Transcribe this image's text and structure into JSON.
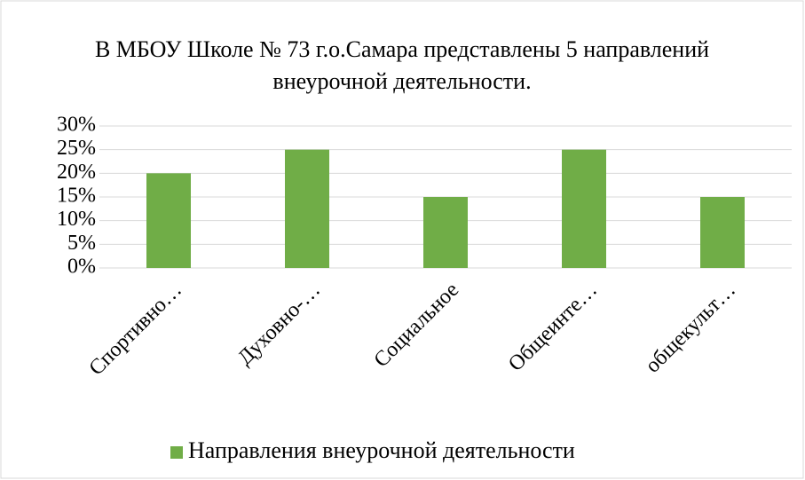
{
  "chart_data": {
    "type": "bar",
    "title": "В МБОУ Школе № 73 г.о.Самара представлены 5 направлений внеурочной деятельности.",
    "categories": [
      "Спортивно…",
      "Духовно-…",
      "Социальное",
      "Общеинте…",
      "общекульт…"
    ],
    "series": [
      {
        "name": "Направления внеурочной деятельности",
        "color": "#70ad47",
        "values": [
          20,
          25,
          15,
          25,
          15
        ]
      }
    ],
    "ylim": [
      0,
      30
    ],
    "yticks": [
      {
        "value": 0,
        "label": "0%"
      },
      {
        "value": 5,
        "label": "5%"
      },
      {
        "value": 10,
        "label": "10%"
      },
      {
        "value": 15,
        "label": "15%"
      },
      {
        "value": 20,
        "label": "20%"
      },
      {
        "value": 25,
        "label": "25%"
      },
      {
        "value": 30,
        "label": "30%"
      }
    ],
    "grid": true,
    "legend": "bottom"
  }
}
